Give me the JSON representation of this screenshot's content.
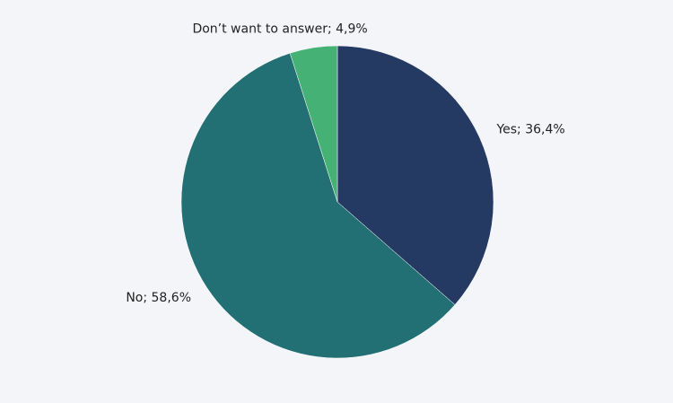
{
  "chart_data": {
    "type": "pie",
    "values": [
      36.4,
      58.6,
      4.9
    ],
    "value_labels": [
      "Yes; 36,4%",
      "No; 58,6%",
      "Don’t want to answer; 4,9%"
    ],
    "colors": [
      "#243a63",
      "#237074",
      "#45b174"
    ]
  }
}
